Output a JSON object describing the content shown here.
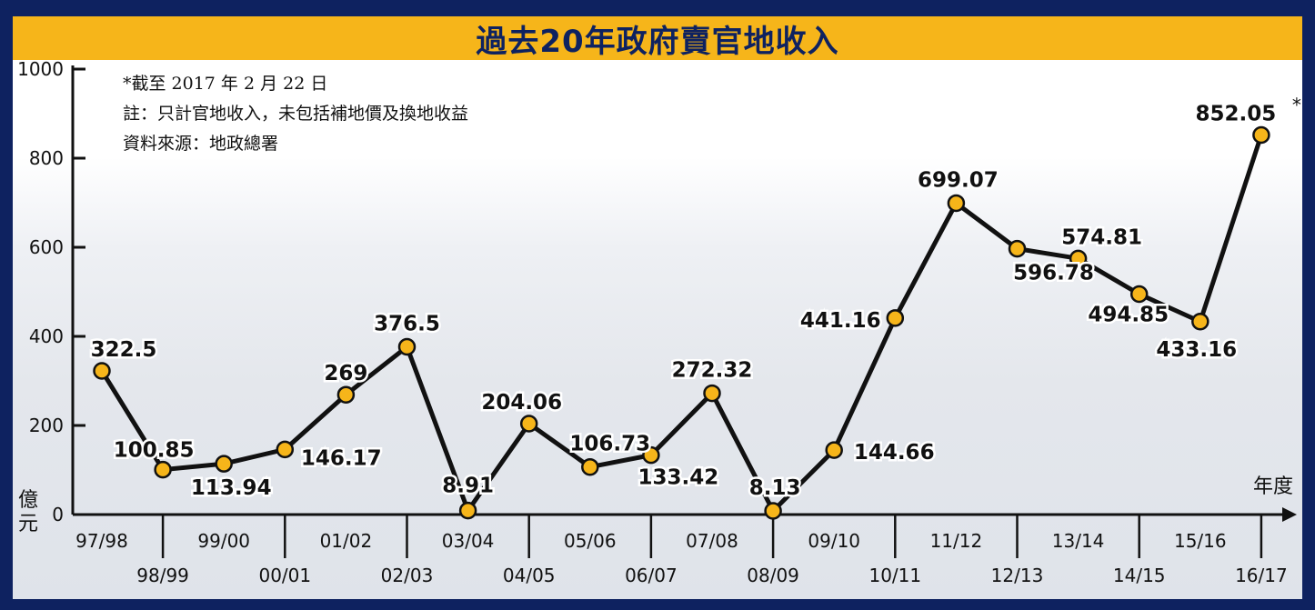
{
  "chart_data": {
    "type": "line",
    "title": "過去20年政府賣官地收入",
    "ylabel": "億元",
    "xlabel": "年度",
    "ylim": [
      0,
      1000
    ],
    "yticks": [
      0,
      200,
      400,
      600,
      800,
      1000
    ],
    "grid": false,
    "categories": [
      "97/98",
      "98/99",
      "99/00",
      "00/01",
      "01/02",
      "02/03",
      "03/04",
      "04/05",
      "05/06",
      "06/07",
      "07/08",
      "08/09",
      "09/10",
      "10/11",
      "11/12",
      "12/13",
      "13/14",
      "14/15",
      "15/16",
      "16/17"
    ],
    "values": [
      322.5,
      100.85,
      113.94,
      146.17,
      269,
      376.5,
      8.91,
      204.06,
      106.73,
      133.42,
      272.32,
      8.13,
      144.66,
      441.16,
      699.07,
      596.78,
      574.81,
      494.85,
      433.16,
      852.05
    ],
    "value_labels": [
      "322.5",
      "100.85",
      "113.94",
      "146.17",
      "269",
      "376.5",
      "8.91",
      "204.06",
      "106.73",
      "133.42",
      "272.32",
      "8.13",
      "144.66",
      "441.16",
      "699.07",
      "596.78",
      "574.81",
      "494.85",
      "433.16",
      "852.05"
    ],
    "last_value_mark": "*",
    "line_color": "#111111",
    "marker_color": "#f6b51a"
  },
  "notes": [
    "*截至 2017 年 2 月 22 日",
    "註：只計官地收入，未包括補地價及換地收益",
    "資料來源：地政總署"
  ],
  "colors": {
    "background": "#0e2260",
    "title_bar": "#f6b51a"
  }
}
